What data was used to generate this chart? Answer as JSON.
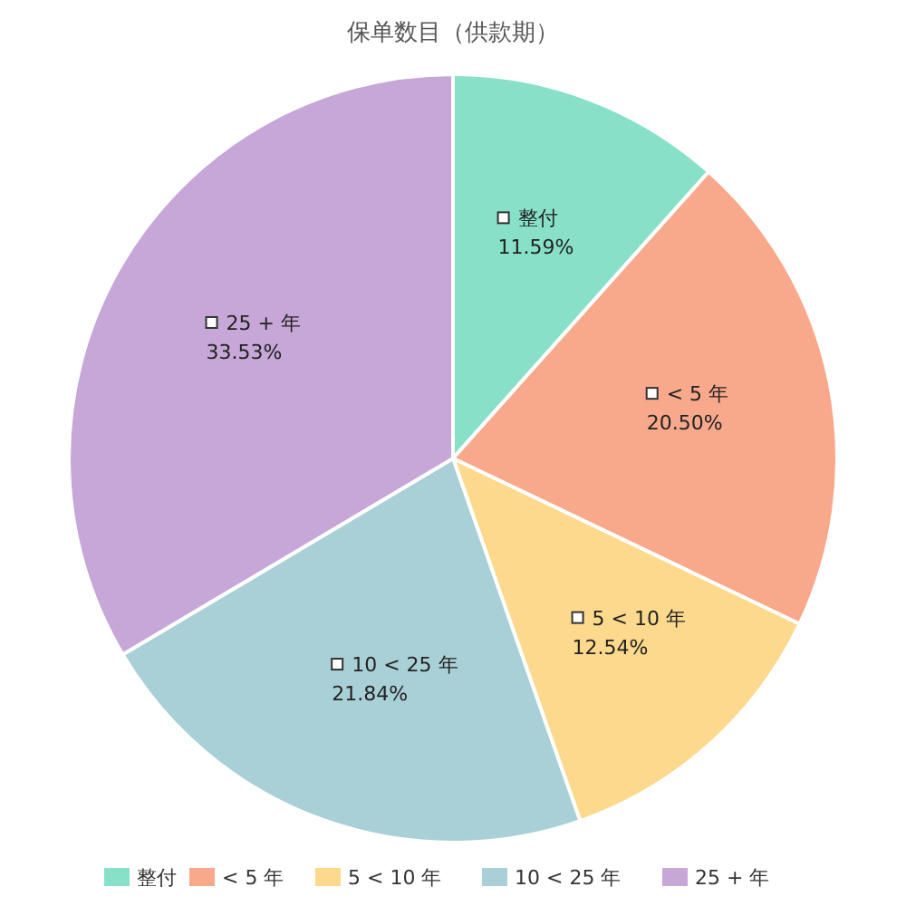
{
  "chart_data": {
    "type": "pie",
    "title": "保单数目（供款期）",
    "categories": [
      "整付",
      "< 5 年",
      "5 < 10 年",
      "10 < 25 年",
      "25 + 年"
    ],
    "values": [
      11.59,
      20.5,
      12.54,
      21.84,
      33.53
    ],
    "colors": [
      "#88e0c9",
      "#f8a88b",
      "#fcd98c",
      "#a9d0d6",
      "#c7a6d8"
    ],
    "value_labels": [
      "11.59%",
      "20.50%",
      "12.54%",
      "21.84%",
      "33.53%"
    ],
    "legend": "bottom"
  }
}
